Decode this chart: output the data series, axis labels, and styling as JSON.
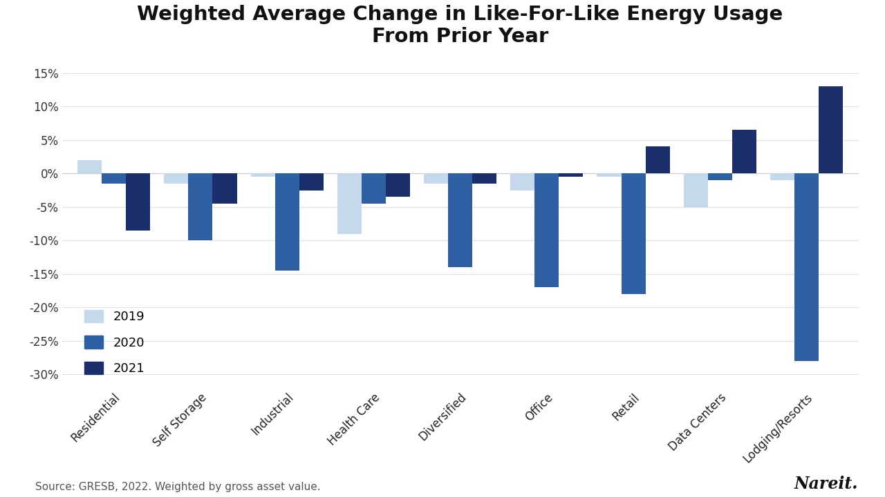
{
  "title": "Weighted Average Change in Like-For-Like Energy Usage\nFrom Prior Year",
  "categories": [
    "Residential",
    "Self Storage",
    "Industrial",
    "Health Care",
    "Diversified",
    "Office",
    "Retail",
    "Data Centers",
    "Lodging/Resorts"
  ],
  "series": {
    "2019": [
      2.0,
      -1.5,
      -0.5,
      -9.0,
      -1.5,
      -2.5,
      -0.5,
      -5.0,
      -1.0
    ],
    "2020": [
      -1.5,
      -10.0,
      -14.5,
      -4.5,
      -14.0,
      -17.0,
      -18.0,
      -1.0,
      -28.0
    ],
    "2021": [
      -8.5,
      -4.5,
      -2.5,
      -3.5,
      -1.5,
      -0.5,
      4.0,
      6.5,
      13.0
    ]
  },
  "colors": {
    "2019": "#c5d8ec",
    "2020": "#2e5fa3",
    "2021": "#1a2e6c"
  },
  "ylim": [
    -32,
    17
  ],
  "yticks": [
    -30,
    -25,
    -20,
    -15,
    -10,
    -5,
    0,
    5,
    10,
    15
  ],
  "background_color": "#ffffff",
  "source_text": "Source: GRESB, 2022. Weighted by gross asset value.",
  "nareit_text": "Nareit.",
  "bar_width": 0.28,
  "title_fontsize": 21,
  "legend_fontsize": 13,
  "tick_fontsize": 12,
  "source_fontsize": 11
}
